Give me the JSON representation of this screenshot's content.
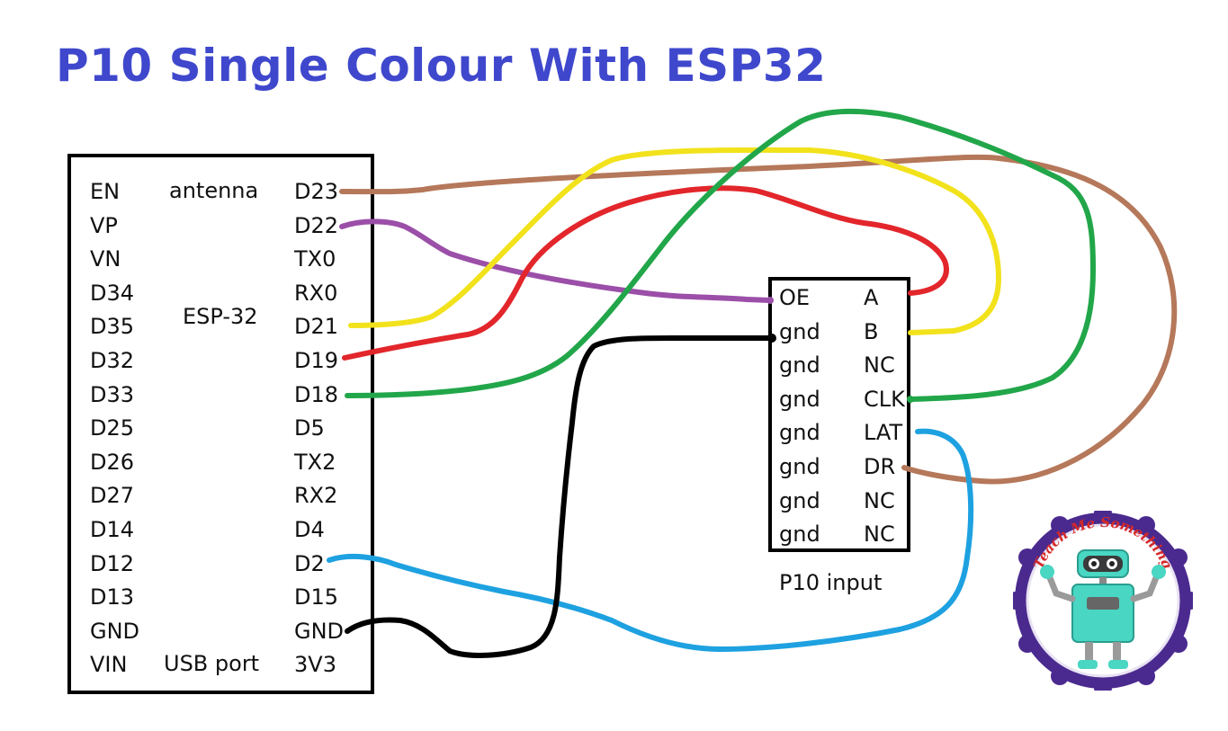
{
  "title": "P10 Single Colour With ESP32",
  "esp32": {
    "left_pins": [
      "EN",
      "VP",
      "VN",
      "D34",
      "D35",
      "D32",
      "D33",
      "D25",
      "D26",
      "D27",
      "D14",
      "D12",
      "D13",
      "GND",
      "VIN"
    ],
    "right_pins": [
      "D23",
      "D22",
      "TX0",
      "RX0",
      "D21",
      "D19",
      "D18",
      "D5",
      "TX2",
      "RX2",
      "D4",
      "D2",
      "D15",
      "GND",
      "3V3"
    ],
    "antenna_label": "antenna",
    "chip_label": "ESP-32",
    "usb_label": "USB port"
  },
  "p10": {
    "left_pins": [
      "OE",
      "gnd",
      "gnd",
      "gnd",
      "gnd",
      "gnd",
      "gnd",
      "gnd"
    ],
    "right_pins": [
      "A",
      "B",
      "NC",
      "CLK",
      "LAT",
      "DR",
      "NC",
      "NC"
    ],
    "caption": "P10 input"
  },
  "connections": [
    {
      "from": "D23",
      "to": "DR",
      "color": "#b5785a"
    },
    {
      "from": "D22",
      "to": "OE",
      "color": "#9b4fa8"
    },
    {
      "from": "D21",
      "to": "B",
      "color": "#f2e21c"
    },
    {
      "from": "D19",
      "to": "A",
      "color": "#e2262b"
    },
    {
      "from": "D18",
      "to": "CLK",
      "color": "#22a64a"
    },
    {
      "from": "D2",
      "to": "LAT",
      "color": "#1ea1e0"
    },
    {
      "from": "GND",
      "to": "gnd",
      "color": "#000000"
    }
  ],
  "logo": {
    "text": "Teach Me Something"
  }
}
